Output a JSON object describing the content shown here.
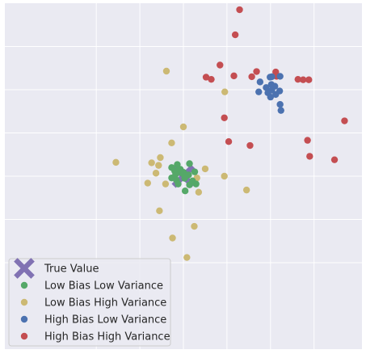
{
  "colors": {
    "background": "#eaeaf2",
    "grid": "#ffffff",
    "true_value": "#8172b3",
    "low_bias_low_variance": "#55a868",
    "low_bias_high_variance": "#ccb974",
    "high_bias_low_variance": "#4c72b0",
    "high_bias_high_variance": "#c44e52"
  },
  "chart_data": {
    "type": "scatter",
    "title": "",
    "xlabel": "",
    "ylabel": "",
    "xlim": [
      -4.1,
      4.1
    ],
    "ylim": [
      -4.0,
      4.0
    ],
    "grid": true,
    "x_ticks": [
      -2,
      -1,
      0,
      1,
      2,
      3
    ],
    "y_ticks": [
      -2,
      -1,
      0,
      1,
      2,
      3
    ],
    "tick_labels_visible": false,
    "legend_placement": "lower-left",
    "series": [
      {
        "name": "True Value",
        "marker": "X",
        "points": [
          [
            0,
            0
          ]
        ]
      },
      {
        "name": "Low Bias Low Variance",
        "marker": "o",
        "points": [
          [
            0.0,
            0.09
          ],
          [
            -0.07,
            0.16
          ],
          [
            0.14,
            0.29
          ],
          [
            -0.14,
            0.27
          ],
          [
            -0.27,
            0.2
          ],
          [
            -0.16,
            -0.09
          ],
          [
            0.29,
            -0.18
          ],
          [
            0.04,
            -0.34
          ],
          [
            -0.27,
            -0.04
          ],
          [
            -0.08,
            0.1
          ],
          [
            0.03,
            0.05
          ],
          [
            -0.02,
            0.06
          ],
          [
            0.26,
            0.1
          ],
          [
            -0.2,
            0.12
          ],
          [
            0.14,
            -0.2
          ],
          [
            0.12,
            0.03
          ],
          [
            0.21,
            -0.11
          ],
          [
            -0.13,
            0.13
          ],
          [
            -0.12,
            -0.18
          ],
          [
            -0.18,
            0.04
          ],
          [
            0.03,
            -0.05
          ]
        ]
      },
      {
        "name": "Low Bias High Variance",
        "marker": "o",
        "points": [
          [
            -0.39,
            2.43
          ],
          [
            0.0,
            1.14
          ],
          [
            -0.27,
            0.77
          ],
          [
            0.95,
            1.95
          ],
          [
            -0.53,
            0.43
          ],
          [
            -1.55,
            0.32
          ],
          [
            -0.57,
            0.25
          ],
          [
            -0.63,
            0.07
          ],
          [
            -0.82,
            -0.16
          ],
          [
            -0.41,
            -0.18
          ],
          [
            0.31,
            -0.04
          ],
          [
            -0.73,
            0.31
          ],
          [
            0.5,
            0.17
          ],
          [
            0.35,
            -0.37
          ],
          [
            0.94,
            0.0
          ],
          [
            1.45,
            -0.32
          ],
          [
            -0.55,
            -0.8
          ],
          [
            0.25,
            -1.16
          ],
          [
            -0.25,
            -1.43
          ],
          [
            0.08,
            -1.88
          ]
        ]
      },
      {
        "name": "High Bias Low Variance",
        "marker": "o",
        "points": [
          [
            1.99,
            2.29
          ],
          [
            2.03,
            2.3
          ],
          [
            2.22,
            2.31
          ],
          [
            1.76,
            2.18
          ],
          [
            2.02,
            2.12
          ],
          [
            1.9,
            2.05
          ],
          [
            2.1,
            2.08
          ],
          [
            2.03,
            1.99
          ],
          [
            2.21,
            1.97
          ],
          [
            1.73,
            1.95
          ],
          [
            1.94,
            1.93
          ],
          [
            2.12,
            1.89
          ],
          [
            2.0,
            1.83
          ],
          [
            2.22,
            1.66
          ],
          [
            2.24,
            1.52
          ]
        ]
      },
      {
        "name": "High Bias High Variance",
        "marker": "o",
        "points": [
          [
            1.29,
            3.85
          ],
          [
            1.19,
            3.27
          ],
          [
            0.84,
            2.57
          ],
          [
            1.68,
            2.42
          ],
          [
            2.12,
            2.41
          ],
          [
            0.52,
            2.29
          ],
          [
            1.16,
            2.32
          ],
          [
            1.57,
            2.3
          ],
          [
            2.14,
            2.31
          ],
          [
            0.64,
            2.24
          ],
          [
            2.63,
            2.24
          ],
          [
            2.75,
            2.23
          ],
          [
            2.88,
            2.23
          ],
          [
            0.94,
            1.35
          ],
          [
            3.7,
            1.28
          ],
          [
            1.04,
            0.8
          ],
          [
            1.53,
            0.71
          ],
          [
            2.85,
            0.83
          ],
          [
            3.47,
            0.38
          ],
          [
            2.9,
            0.46
          ]
        ]
      }
    ]
  }
}
